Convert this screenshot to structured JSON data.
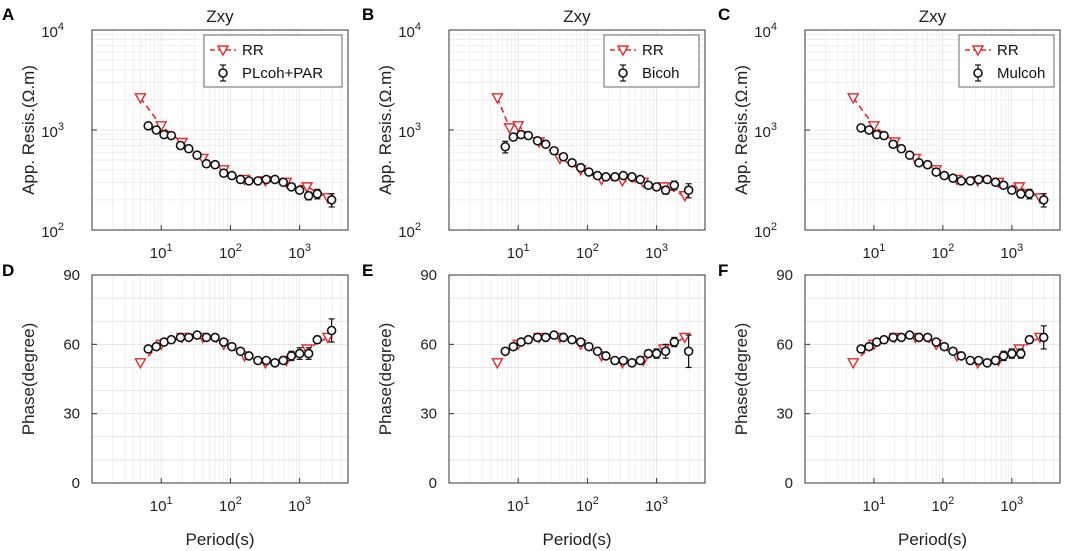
{
  "figure": {
    "x_label": "Period(s)",
    "panel_titles": [
      "Zxy",
      "Zxy",
      "Zxy"
    ],
    "resistivity_ylabel": "App. Resis.(Ω.m)",
    "phase_ylabel": "Phase(degree)",
    "x_ticks": [
      {
        "base": "10",
        "exp": "1"
      },
      {
        "base": "10",
        "exp": "2"
      },
      {
        "base": "10",
        "exp": "3"
      }
    ],
    "res_ticks": [
      {
        "base": "10",
        "exp": "2"
      },
      {
        "base": "10",
        "exp": "3"
      },
      {
        "base": "10",
        "exp": "4"
      }
    ],
    "phase_ticks": [
      "0",
      "30",
      "60",
      "90"
    ],
    "legend_rr": "RR",
    "colors": {
      "rr": "#e8282d",
      "method": "#111111",
      "grid": "#d9d9d9"
    }
  },
  "chart_data": [
    {
      "panel": "A",
      "type": "scatter",
      "title": "Zxy",
      "xlabel": "",
      "ylabel": "App. Resis.(Ω.m)",
      "xscale": "log",
      "yscale": "log",
      "xlim": [
        1,
        5000
      ],
      "ylim": [
        100,
        10000
      ],
      "legend": [
        "RR",
        "PLcoh+PAR"
      ],
      "series": [
        {
          "name": "RR",
          "style": "dashed-line-triangle",
          "x": [
            5,
            10,
            20,
            40,
            80,
            160,
            320,
            640,
            1280,
            2560
          ],
          "y": [
            2100,
            1100,
            750,
            520,
            400,
            320,
            310,
            300,
            270,
            210
          ]
        },
        {
          "name": "PLcoh+PAR",
          "style": "circle-errorbar",
          "x": [
            6.5,
            8.5,
            11,
            14,
            19,
            25,
            33,
            45,
            60,
            80,
            105,
            140,
            185,
            250,
            330,
            440,
            580,
            760,
            1000,
            1350,
            1800,
            2900
          ],
          "y": [
            1100,
            1000,
            900,
            880,
            700,
            650,
            560,
            460,
            450,
            370,
            350,
            320,
            310,
            310,
            320,
            320,
            300,
            270,
            250,
            220,
            230,
            200
          ],
          "err": [
            40,
            35,
            30,
            30,
            25,
            25,
            20,
            18,
            18,
            15,
            15,
            14,
            14,
            14,
            15,
            15,
            14,
            14,
            14,
            20,
            25,
            30
          ]
        }
      ]
    },
    {
      "panel": "B",
      "type": "scatter",
      "title": "Zxy",
      "xlabel": "",
      "ylabel": "",
      "xscale": "log",
      "yscale": "log",
      "xlim": [
        1,
        5000
      ],
      "ylim": [
        100,
        10000
      ],
      "legend": [
        "RR",
        "Bicoh"
      ],
      "series": [
        {
          "name": "RR",
          "style": "dashed-line-triangle",
          "x": [
            5,
            7.5,
            10,
            20,
            40,
            80,
            160,
            320,
            640,
            1280,
            2560
          ],
          "y": [
            2100,
            1050,
            1100,
            760,
            520,
            400,
            320,
            310,
            300,
            270,
            220
          ]
        },
        {
          "name": "Bicoh",
          "style": "circle-errorbar",
          "x": [
            6.5,
            8.5,
            11,
            14,
            19,
            25,
            33,
            45,
            60,
            80,
            105,
            140,
            185,
            250,
            330,
            440,
            580,
            760,
            1000,
            1350,
            1800,
            2900
          ],
          "y": [
            680,
            850,
            900,
            880,
            780,
            720,
            620,
            540,
            470,
            420,
            380,
            350,
            340,
            340,
            350,
            340,
            320,
            280,
            270,
            250,
            280,
            250
          ],
          "err": [
            90,
            50,
            40,
            30,
            28,
            25,
            22,
            20,
            18,
            16,
            15,
            14,
            14,
            14,
            15,
            15,
            14,
            18,
            18,
            22,
            28,
            40
          ]
        }
      ]
    },
    {
      "panel": "C",
      "type": "scatter",
      "title": "Zxy",
      "xlabel": "",
      "ylabel": "App. Resis.(Ω.m)",
      "xscale": "log",
      "yscale": "log",
      "xlim": [
        1,
        5000
      ],
      "ylim": [
        100,
        10000
      ],
      "legend": [
        "RR",
        "Mulcoh"
      ],
      "series": [
        {
          "name": "RR",
          "style": "dashed-line-triangle",
          "x": [
            5,
            10,
            20,
            40,
            80,
            160,
            320,
            640,
            1280,
            2560
          ],
          "y": [
            2100,
            1100,
            760,
            520,
            400,
            320,
            310,
            300,
            270,
            210
          ]
        },
        {
          "name": "Mulcoh",
          "style": "circle-errorbar",
          "x": [
            6.5,
            8.5,
            11,
            14,
            19,
            25,
            33,
            45,
            60,
            80,
            105,
            140,
            185,
            250,
            330,
            440,
            580,
            760,
            1000,
            1350,
            1800,
            2900
          ],
          "y": [
            1050,
            1000,
            900,
            880,
            720,
            650,
            560,
            470,
            450,
            380,
            350,
            330,
            310,
            310,
            320,
            320,
            300,
            280,
            250,
            230,
            230,
            200
          ],
          "err": [
            40,
            35,
            30,
            30,
            25,
            25,
            20,
            18,
            18,
            15,
            15,
            14,
            14,
            14,
            15,
            15,
            14,
            14,
            14,
            20,
            25,
            30
          ]
        }
      ]
    },
    {
      "panel": "D",
      "type": "scatter",
      "title": "",
      "xlabel": "Period(s)",
      "ylabel": "Phase(degree)",
      "xscale": "log",
      "yscale": "linear",
      "xlim": [
        1,
        5000
      ],
      "ylim": [
        0,
        90
      ],
      "series": [
        {
          "name": "RR",
          "style": "dashed-line-triangle",
          "x": [
            5,
            10,
            20,
            40,
            80,
            160,
            320,
            640,
            1280,
            2560
          ],
          "y": [
            52,
            60,
            63,
            63,
            60,
            55,
            52,
            53,
            58,
            63
          ]
        },
        {
          "name": "PLcoh+PAR",
          "style": "circle-errorbar",
          "x": [
            6.5,
            8.5,
            11,
            14,
            19,
            25,
            33,
            45,
            60,
            80,
            105,
            140,
            185,
            250,
            330,
            440,
            580,
            760,
            1000,
            1350,
            1800,
            2900
          ],
          "y": [
            58,
            59,
            61,
            62,
            63,
            63,
            64,
            63,
            63,
            61,
            59,
            57,
            55,
            53,
            53,
            52,
            53,
            55,
            56,
            56,
            62,
            66
          ],
          "err": [
            0.8,
            0.8,
            0.8,
            0.8,
            0.8,
            0.8,
            0.8,
            0.8,
            0.8,
            0.8,
            0.8,
            0.8,
            0.8,
            0.8,
            0.8,
            1,
            1,
            2,
            2.5,
            2.5,
            1.5,
            5
          ]
        }
      ]
    },
    {
      "panel": "E",
      "type": "scatter",
      "title": "",
      "xlabel": "Period(s)",
      "ylabel": "Phase(degree)",
      "xscale": "log",
      "yscale": "linear",
      "xlim": [
        1,
        5000
      ],
      "ylim": [
        0,
        90
      ],
      "series": [
        {
          "name": "RR",
          "style": "dashed-line-triangle",
          "x": [
            5,
            10,
            20,
            40,
            80,
            160,
            320,
            640,
            1280,
            2560
          ],
          "y": [
            52,
            60,
            63,
            63,
            60,
            55,
            52,
            53,
            58,
            63
          ]
        },
        {
          "name": "Bicoh",
          "style": "circle-errorbar",
          "x": [
            6.5,
            8.5,
            11,
            14,
            19,
            25,
            33,
            45,
            60,
            80,
            105,
            140,
            185,
            250,
            330,
            440,
            580,
            760,
            1000,
            1350,
            1800,
            2900
          ],
          "y": [
            57,
            59,
            61,
            62,
            63,
            63,
            64,
            63,
            62,
            61,
            59,
            57,
            55,
            53,
            53,
            52,
            53,
            56,
            56,
            57,
            61,
            57
          ],
          "err": [
            0.8,
            0.8,
            0.8,
            0.8,
            0.8,
            0.8,
            0.8,
            0.8,
            0.8,
            0.8,
            0.8,
            0.8,
            0.8,
            0.8,
            0.8,
            1,
            1,
            1.5,
            2,
            3,
            2,
            7
          ]
        }
      ]
    },
    {
      "panel": "F",
      "type": "scatter",
      "title": "",
      "xlabel": "Period(s)",
      "ylabel": "Phase(degree)",
      "xscale": "log",
      "yscale": "linear",
      "xlim": [
        1,
        5000
      ],
      "ylim": [
        0,
        90
      ],
      "series": [
        {
          "name": "RR",
          "style": "dashed-line-triangle",
          "x": [
            5,
            10,
            20,
            40,
            80,
            160,
            320,
            640,
            1280,
            2560
          ],
          "y": [
            52,
            60,
            63,
            63,
            60,
            55,
            52,
            53,
            58,
            63
          ]
        },
        {
          "name": "Mulcoh",
          "style": "circle-errorbar",
          "x": [
            6.5,
            8.5,
            11,
            14,
            19,
            25,
            33,
            45,
            60,
            80,
            105,
            140,
            185,
            250,
            330,
            440,
            580,
            760,
            1000,
            1350,
            1800,
            2900
          ],
          "y": [
            58,
            59,
            61,
            62,
            63,
            63,
            64,
            63,
            63,
            61,
            59,
            57,
            55,
            53,
            53,
            52,
            53,
            55,
            56,
            56,
            62,
            63
          ],
          "err": [
            0.8,
            0.8,
            0.8,
            0.8,
            0.8,
            0.8,
            0.8,
            0.8,
            0.8,
            0.8,
            0.8,
            0.8,
            0.8,
            0.8,
            0.8,
            1,
            1,
            2,
            2,
            2,
            1.5,
            5
          ]
        }
      ]
    }
  ]
}
